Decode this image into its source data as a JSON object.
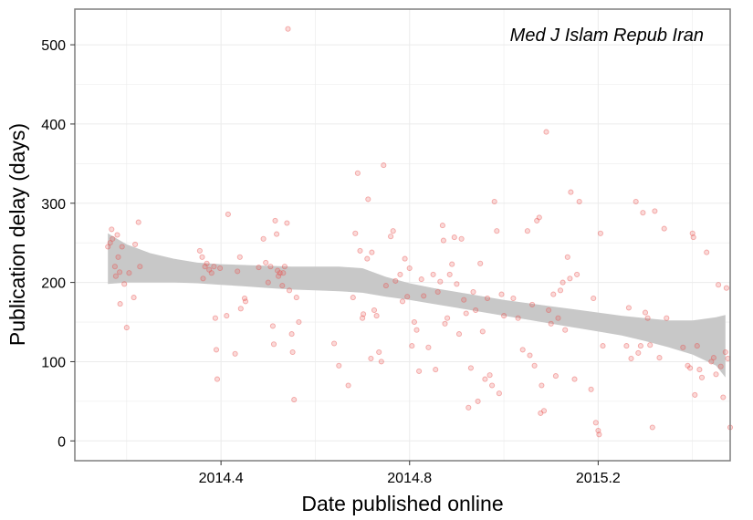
{
  "chart_data": {
    "type": "scatter",
    "title": "Med J Islam Repub Iran",
    "xlabel": "Date published online",
    "ylabel": "Publication delay (days)",
    "xlim": [
      2014.09,
      2015.48
    ],
    "ylim": [
      -25,
      545
    ],
    "x_ticks": [
      2014.4,
      2014.8,
      2015.2
    ],
    "x_tick_labels": [
      "2014.4",
      "2014.8",
      "2015.2"
    ],
    "y_ticks": [
      0,
      100,
      200,
      300,
      400,
      500
    ],
    "y_tick_labels": [
      "0",
      "100",
      "200",
      "300",
      "400",
      "500"
    ],
    "grid": true,
    "legend": "none",
    "colors": {
      "points": "#e8524f",
      "band": "#c8c8c8",
      "grid": "#ebebeb",
      "border": "#7f7f7f"
    },
    "smooth_band": {
      "x": [
        2014.16,
        2014.2,
        2014.25,
        2014.3,
        2014.35,
        2014.4,
        2014.45,
        2014.5,
        2014.55,
        2014.6,
        2014.65,
        2014.7,
        2014.75,
        2014.8,
        2014.85,
        2014.9,
        2014.95,
        2015.0,
        2015.05,
        2015.1,
        2015.15,
        2015.2,
        2015.25,
        2015.3,
        2015.35,
        2015.4,
        2015.45,
        2015.47
      ],
      "lower": [
        198,
        200,
        200,
        200,
        199,
        197,
        195,
        193,
        191,
        190,
        189,
        187,
        182,
        178,
        173,
        168,
        163,
        158,
        153,
        148,
        143,
        138,
        133,
        126,
        118,
        109,
        95,
        80
      ],
      "upper": [
        262,
        248,
        237,
        230,
        225,
        223,
        222,
        221,
        220,
        220,
        220,
        218,
        207,
        199,
        193,
        188,
        183,
        178,
        174,
        170,
        166,
        162,
        158,
        155,
        152,
        152,
        156,
        159
      ]
    },
    "points": [
      [
        2014.16,
        245
      ],
      [
        2014.165,
        250
      ],
      [
        2014.168,
        267
      ],
      [
        2014.17,
        255
      ],
      [
        2014.175,
        220
      ],
      [
        2014.177,
        208
      ],
      [
        2014.18,
        260
      ],
      [
        2014.182,
        232
      ],
      [
        2014.185,
        213
      ],
      [
        2014.186,
        173
      ],
      [
        2014.19,
        245
      ],
      [
        2014.195,
        198
      ],
      [
        2014.2,
        143
      ],
      [
        2014.205,
        212
      ],
      [
        2014.215,
        181
      ],
      [
        2014.218,
        248
      ],
      [
        2014.225,
        276
      ],
      [
        2014.228,
        220
      ],
      [
        2014.355,
        240
      ],
      [
        2014.36,
        232
      ],
      [
        2014.362,
        205
      ],
      [
        2014.366,
        220
      ],
      [
        2014.37,
        224
      ],
      [
        2014.375,
        216
      ],
      [
        2014.38,
        212
      ],
      [
        2014.385,
        220
      ],
      [
        2014.388,
        155
      ],
      [
        2014.39,
        115
      ],
      [
        2014.392,
        78
      ],
      [
        2014.398,
        218
      ],
      [
        2014.412,
        158
      ],
      [
        2014.415,
        286
      ],
      [
        2014.43,
        110
      ],
      [
        2014.435,
        214
      ],
      [
        2014.44,
        232
      ],
      [
        2014.442,
        167
      ],
      [
        2014.45,
        180
      ],
      [
        2014.452,
        176
      ],
      [
        2014.48,
        219
      ],
      [
        2014.49,
        255
      ],
      [
        2014.495,
        225
      ],
      [
        2014.5,
        200
      ],
      [
        2014.505,
        220
      ],
      [
        2014.51,
        145
      ],
      [
        2014.512,
        122
      ],
      [
        2014.515,
        278
      ],
      [
        2014.518,
        261
      ],
      [
        2014.52,
        215
      ],
      [
        2014.522,
        208
      ],
      [
        2014.525,
        212
      ],
      [
        2014.53,
        196
      ],
      [
        2014.532,
        212
      ],
      [
        2014.535,
        220
      ],
      [
        2014.54,
        275
      ],
      [
        2014.542,
        520
      ],
      [
        2014.545,
        190
      ],
      [
        2014.55,
        135
      ],
      [
        2014.552,
        112
      ],
      [
        2014.555,
        52
      ],
      [
        2014.56,
        181
      ],
      [
        2014.565,
        150
      ],
      [
        2014.64,
        123
      ],
      [
        2014.65,
        95
      ],
      [
        2014.67,
        70
      ],
      [
        2014.68,
        181
      ],
      [
        2014.685,
        262
      ],
      [
        2014.69,
        338
      ],
      [
        2014.695,
        240
      ],
      [
        2014.7,
        155
      ],
      [
        2014.702,
        160
      ],
      [
        2014.71,
        230
      ],
      [
        2014.712,
        305
      ],
      [
        2014.718,
        104
      ],
      [
        2014.72,
        238
      ],
      [
        2014.725,
        165
      ],
      [
        2014.73,
        158
      ],
      [
        2014.735,
        112
      ],
      [
        2014.74,
        100
      ],
      [
        2014.745,
        348
      ],
      [
        2014.75,
        196
      ],
      [
        2014.76,
        258
      ],
      [
        2014.765,
        265
      ],
      [
        2014.77,
        202
      ],
      [
        2014.78,
        210
      ],
      [
        2014.785,
        176
      ],
      [
        2014.79,
        230
      ],
      [
        2014.795,
        182
      ],
      [
        2014.8,
        218
      ],
      [
        2014.805,
        120
      ],
      [
        2014.81,
        150
      ],
      [
        2014.815,
        140
      ],
      [
        2014.82,
        88
      ],
      [
        2014.825,
        204
      ],
      [
        2014.83,
        183
      ],
      [
        2014.84,
        118
      ],
      [
        2014.85,
        210
      ],
      [
        2014.855,
        90
      ],
      [
        2014.86,
        188
      ],
      [
        2014.865,
        201
      ],
      [
        2014.87,
        272
      ],
      [
        2014.872,
        253
      ],
      [
        2014.875,
        148
      ],
      [
        2014.88,
        155
      ],
      [
        2014.885,
        210
      ],
      [
        2014.89,
        223
      ],
      [
        2014.895,
        257
      ],
      [
        2014.9,
        198
      ],
      [
        2014.905,
        135
      ],
      [
        2014.91,
        255
      ],
      [
        2014.915,
        178
      ],
      [
        2014.92,
        161
      ],
      [
        2014.925,
        42
      ],
      [
        2014.93,
        92
      ],
      [
        2014.935,
        188
      ],
      [
        2014.94,
        165
      ],
      [
        2014.945,
        50
      ],
      [
        2014.95,
        224
      ],
      [
        2014.955,
        138
      ],
      [
        2014.96,
        78
      ],
      [
        2014.965,
        180
      ],
      [
        2014.97,
        83
      ],
      [
        2014.975,
        70
      ],
      [
        2014.98,
        302
      ],
      [
        2014.985,
        265
      ],
      [
        2014.99,
        60
      ],
      [
        2014.995,
        185
      ],
      [
        2015.0,
        158
      ],
      [
        2015.02,
        180
      ],
      [
        2015.03,
        155
      ],
      [
        2015.04,
        115
      ],
      [
        2015.05,
        265
      ],
      [
        2015.055,
        108
      ],
      [
        2015.06,
        172
      ],
      [
        2015.065,
        95
      ],
      [
        2015.07,
        278
      ],
      [
        2015.075,
        282
      ],
      [
        2015.078,
        35
      ],
      [
        2015.08,
        70
      ],
      [
        2015.085,
        38
      ],
      [
        2015.09,
        390
      ],
      [
        2015.095,
        165
      ],
      [
        2015.1,
        148
      ],
      [
        2015.105,
        185
      ],
      [
        2015.11,
        82
      ],
      [
        2015.115,
        155
      ],
      [
        2015.12,
        190
      ],
      [
        2015.125,
        200
      ],
      [
        2015.13,
        140
      ],
      [
        2015.135,
        232
      ],
      [
        2015.14,
        205
      ],
      [
        2015.142,
        314
      ],
      [
        2015.15,
        78
      ],
      [
        2015.155,
        210
      ],
      [
        2015.16,
        302
      ],
      [
        2015.185,
        65
      ],
      [
        2015.19,
        180
      ],
      [
        2015.195,
        23
      ],
      [
        2015.2,
        13
      ],
      [
        2015.202,
        8
      ],
      [
        2015.205,
        262
      ],
      [
        2015.21,
        120
      ],
      [
        2015.26,
        120
      ],
      [
        2015.265,
        168
      ],
      [
        2015.27,
        104
      ],
      [
        2015.28,
        302
      ],
      [
        2015.285,
        111
      ],
      [
        2015.29,
        120
      ],
      [
        2015.295,
        288
      ],
      [
        2015.3,
        162
      ],
      [
        2015.305,
        155
      ],
      [
        2015.31,
        121
      ],
      [
        2015.315,
        17
      ],
      [
        2015.32,
        290
      ],
      [
        2015.33,
        105
      ],
      [
        2015.34,
        268
      ],
      [
        2015.345,
        155
      ],
      [
        2015.38,
        118
      ],
      [
        2015.39,
        95
      ],
      [
        2015.395,
        92
      ],
      [
        2015.4,
        262
      ],
      [
        2015.402,
        257
      ],
      [
        2015.405,
        58
      ],
      [
        2015.41,
        120
      ],
      [
        2015.415,
        90
      ],
      [
        2015.42,
        80
      ],
      [
        2015.43,
        238
      ],
      [
        2015.44,
        100
      ],
      [
        2015.445,
        105
      ],
      [
        2015.45,
        84
      ],
      [
        2015.455,
        197
      ],
      [
        2015.46,
        94
      ],
      [
        2015.465,
        55
      ],
      [
        2015.47,
        112
      ],
      [
        2015.472,
        193
      ],
      [
        2015.475,
        104
      ],
      [
        2015.48,
        17
      ]
    ]
  }
}
